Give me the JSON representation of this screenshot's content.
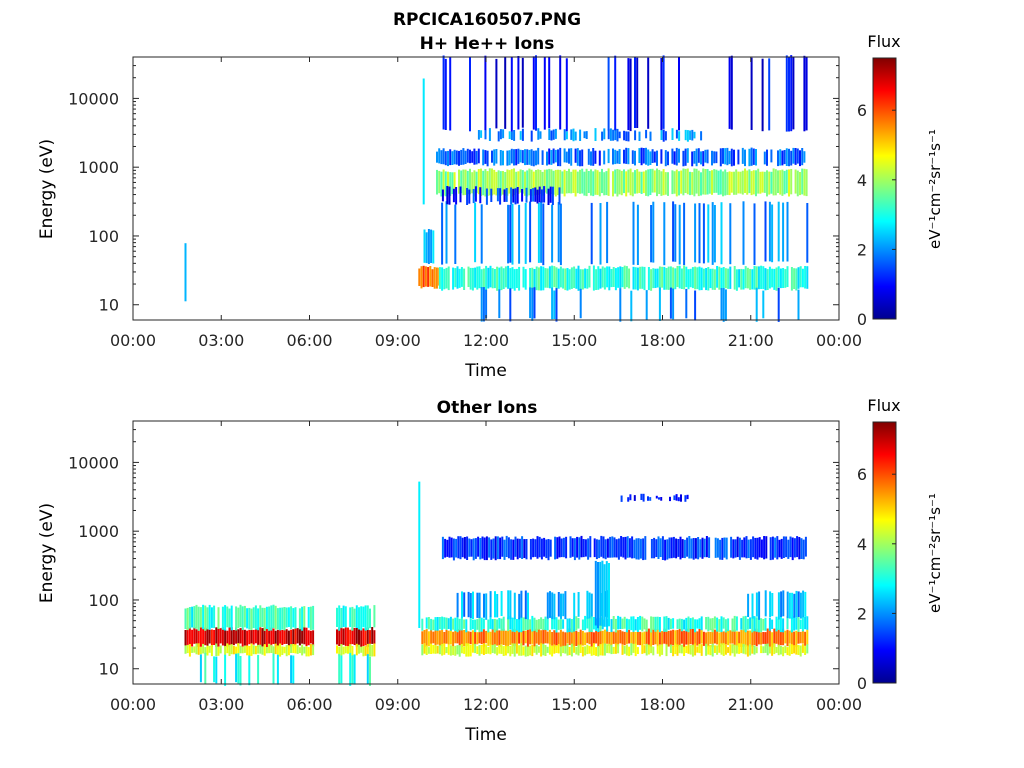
{
  "figure": {
    "title": "RPCICA160507.PNG"
  },
  "colorbar": {
    "label": "Flux",
    "unit_label": "eV⁻¹cm⁻²sr⁻¹s⁻¹",
    "range": [
      0,
      7.5
    ],
    "ticks": [
      "0",
      "2",
      "4",
      "6"
    ],
    "colormap": [
      "#00008f",
      "#0000ff",
      "#0080ff",
      "#00ffff",
      "#80ff80",
      "#ffff00",
      "#ff8000",
      "#ff0000",
      "#800000"
    ]
  },
  "chart_data": [
    {
      "type": "heatmap",
      "title": "H+ He++ Ions",
      "xlabel": "Time",
      "ylabel": "Energy (eV)",
      "xticks": [
        "00:00",
        "03:00",
        "06:00",
        "09:00",
        "12:00",
        "15:00",
        "18:00",
        "21:00",
        "00:00"
      ],
      "yticks": [
        "10",
        "100",
        "1000",
        "10000"
      ],
      "xlim_hours": [
        0,
        24
      ],
      "ylim": [
        6,
        40000
      ],
      "yscale": "log",
      "cells": [
        {
          "t0": 1.75,
          "t1": 1.8,
          "e0": 12,
          "e1": 80,
          "flux": 2.5,
          "density": 0.8
        },
        {
          "t0": 9.7,
          "t1": 9.9,
          "e0": 300,
          "e1": 20000,
          "flux": 2.2,
          "density": 0.25
        },
        {
          "t0": 9.7,
          "t1": 10.4,
          "e0": 18,
          "e1": 35,
          "flux": 5.8,
          "density": 1.0
        },
        {
          "t0": 9.8,
          "t1": 10.4,
          "e0": 40,
          "e1": 120,
          "flux": 2.3,
          "density": 0.5
        },
        {
          "t0": 10.4,
          "t1": 22.9,
          "e0": 17,
          "e1": 35,
          "flux": 3.1,
          "density": 0.95
        },
        {
          "t0": 10.4,
          "t1": 22.9,
          "e0": 6,
          "e1": 17,
          "flux": 2.0,
          "density": 0.15
        },
        {
          "t0": 10.4,
          "t1": 22.9,
          "e0": 40,
          "e1": 300,
          "flux": 2.0,
          "density": 0.25
        },
        {
          "t0": 10.3,
          "t1": 22.9,
          "e0": 400,
          "e1": 900,
          "flux": 3.9,
          "density": 0.95
        },
        {
          "t0": 10.3,
          "t1": 22.9,
          "e0": 1100,
          "e1": 1800,
          "flux": 1.6,
          "density": 0.8
        },
        {
          "t0": 11.5,
          "t1": 19.3,
          "e0": 2500,
          "e1": 3500,
          "flux": 1.9,
          "density": 0.6
        },
        {
          "t0": 10.3,
          "t1": 22.9,
          "e0": 3500,
          "e1": 40000,
          "flux": 0.9,
          "density": 0.22
        },
        {
          "t0": 10.5,
          "t1": 14.5,
          "e0": 300,
          "e1": 500,
          "flux": 1.2,
          "density": 0.55
        }
      ]
    },
    {
      "type": "heatmap",
      "title": "Other Ions",
      "xlabel": "Time",
      "ylabel": "Energy (eV)",
      "xticks": [
        "00:00",
        "03:00",
        "06:00",
        "09:00",
        "12:00",
        "15:00",
        "18:00",
        "21:00",
        "00:00"
      ],
      "yticks": [
        "10",
        "100",
        "1000",
        "10000"
      ],
      "xlim_hours": [
        0,
        24
      ],
      "ylim": [
        6,
        40000
      ],
      "yscale": "log",
      "cells": [
        {
          "t0": 1.75,
          "t1": 6.1,
          "e0": 22,
          "e1": 38,
          "flux": 6.9,
          "density": 1.0
        },
        {
          "t0": 1.75,
          "t1": 6.1,
          "e0": 38,
          "e1": 80,
          "flux": 3.2,
          "density": 0.9
        },
        {
          "t0": 1.75,
          "t1": 6.1,
          "e0": 16,
          "e1": 22,
          "flux": 4.5,
          "density": 0.95
        },
        {
          "t0": 1.75,
          "t1": 6.1,
          "e0": 6,
          "e1": 16,
          "flux": 3.0,
          "density": 0.3
        },
        {
          "t0": 6.9,
          "t1": 8.2,
          "e0": 22,
          "e1": 38,
          "flux": 6.9,
          "density": 1.0
        },
        {
          "t0": 6.9,
          "t1": 8.2,
          "e0": 38,
          "e1": 80,
          "flux": 3.2,
          "density": 0.9
        },
        {
          "t0": 6.9,
          "t1": 8.2,
          "e0": 16,
          "e1": 22,
          "flux": 4.5,
          "density": 0.95
        },
        {
          "t0": 6.9,
          "t1": 8.2,
          "e0": 6,
          "e1": 16,
          "flux": 3.0,
          "density": 0.25
        },
        {
          "t0": 9.8,
          "t1": 22.9,
          "e0": 22,
          "e1": 36,
          "flux": 5.6,
          "density": 1.0
        },
        {
          "t0": 9.8,
          "t1": 22.9,
          "e0": 16,
          "e1": 22,
          "flux": 4.4,
          "density": 0.95
        },
        {
          "t0": 9.8,
          "t1": 22.9,
          "e0": 36,
          "e1": 55,
          "flux": 3.1,
          "density": 0.9
        },
        {
          "t0": 11.0,
          "t1": 16.2,
          "e0": 55,
          "e1": 130,
          "flux": 2.2,
          "density": 0.5
        },
        {
          "t0": 20.8,
          "t1": 22.9,
          "e0": 55,
          "e1": 130,
          "flux": 2.2,
          "density": 0.5
        },
        {
          "t0": 15.7,
          "t1": 16.3,
          "e0": 40,
          "e1": 350,
          "flux": 2.5,
          "density": 0.45
        },
        {
          "t0": 10.5,
          "t1": 22.9,
          "e0": 400,
          "e1": 800,
          "flux": 1.3,
          "density": 0.95
        },
        {
          "t0": 16.5,
          "t1": 19.0,
          "e0": 2800,
          "e1": 3300,
          "flux": 1.0,
          "density": 0.4
        },
        {
          "t0": 9.7,
          "t1": 9.9,
          "e0": 40,
          "e1": 5000,
          "flux": 2.3,
          "density": 0.3
        }
      ]
    }
  ]
}
